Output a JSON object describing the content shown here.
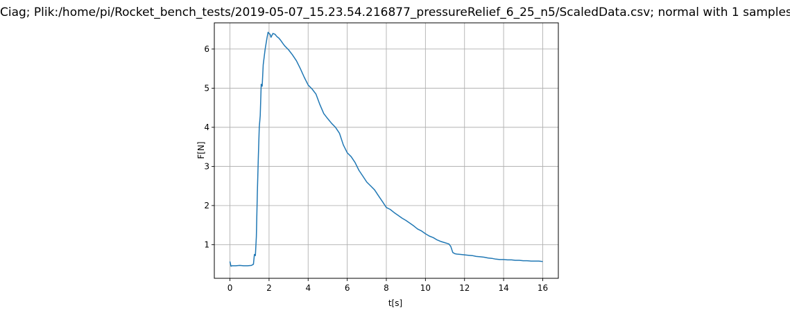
{
  "chart_data": {
    "type": "line",
    "title": "Ciag; Plik:/home/pi/Rocket_bench_tests/2019-05-07_15.23.54.216877_pressureRelief_6_25_n5/ScaledData.csv; normal with 1 samples",
    "xlabel": "t[s]",
    "ylabel": "F[N]",
    "xlim": [
      -0.8,
      16.8
    ],
    "ylim": [
      0.14,
      6.67
    ],
    "xticks": [
      0,
      2,
      4,
      6,
      8,
      10,
      12,
      14,
      16
    ],
    "yticks": [
      1,
      2,
      3,
      4,
      5,
      6
    ],
    "xtick_labels": [
      "0",
      "2",
      "4",
      "6",
      "8",
      "10",
      "12",
      "14",
      "16"
    ],
    "ytick_labels": [
      "1",
      "2",
      "3",
      "4",
      "5",
      "6"
    ],
    "grid": true,
    "line_color": "#1f77b4",
    "grid_color": "#b0b0b0",
    "series": [
      {
        "x": [
          0.0,
          0.05,
          0.1,
          0.3,
          0.5,
          0.7,
          0.9,
          1.1,
          1.2,
          1.25,
          1.3,
          1.35,
          1.4,
          1.45,
          1.5,
          1.55,
          1.6,
          1.65,
          1.7,
          1.75,
          1.8,
          1.85,
          1.9,
          1.95,
          2.0,
          2.05,
          2.1,
          2.15,
          2.2,
          2.3,
          2.4,
          2.5,
          2.6,
          2.7,
          2.8,
          3.0,
          3.2,
          3.4,
          3.6,
          3.8,
          4.0,
          4.2,
          4.4,
          4.6,
          4.8,
          5.0,
          5.2,
          5.4,
          5.6,
          5.8,
          6.0,
          6.2,
          6.4,
          6.6,
          6.8,
          7.0,
          7.2,
          7.4,
          7.6,
          7.8,
          8.0,
          8.2,
          8.4,
          8.6,
          8.8,
          9.0,
          9.2,
          9.4,
          9.6,
          9.8,
          10.0,
          10.2,
          10.4,
          10.6,
          10.8,
          11.0,
          11.2,
          11.3,
          11.4,
          11.5,
          11.6,
          11.8,
          12.0,
          12.2,
          12.4,
          12.6,
          12.8,
          13.0,
          13.2,
          13.4,
          13.6,
          13.8,
          14.0,
          14.2,
          14.4,
          14.6,
          14.8,
          15.0,
          15.2,
          15.4,
          15.6,
          15.8,
          16.0
        ],
        "values": [
          0.57,
          0.45,
          0.46,
          0.46,
          0.47,
          0.46,
          0.46,
          0.47,
          0.5,
          0.75,
          0.72,
          1.2,
          2.3,
          3.2,
          4.0,
          4.3,
          5.1,
          5.05,
          5.6,
          5.8,
          6.0,
          6.15,
          6.3,
          6.43,
          6.4,
          6.38,
          6.3,
          6.35,
          6.4,
          6.38,
          6.32,
          6.28,
          6.22,
          6.15,
          6.08,
          5.98,
          5.85,
          5.7,
          5.5,
          5.28,
          5.08,
          4.98,
          4.85,
          4.58,
          4.35,
          4.22,
          4.1,
          4.0,
          3.85,
          3.55,
          3.35,
          3.25,
          3.1,
          2.9,
          2.75,
          2.6,
          2.5,
          2.4,
          2.25,
          2.1,
          1.95,
          1.9,
          1.82,
          1.75,
          1.68,
          1.62,
          1.55,
          1.48,
          1.4,
          1.35,
          1.28,
          1.22,
          1.18,
          1.12,
          1.08,
          1.05,
          1.02,
          0.95,
          0.8,
          0.77,
          0.76,
          0.75,
          0.74,
          0.73,
          0.72,
          0.7,
          0.69,
          0.68,
          0.66,
          0.65,
          0.63,
          0.62,
          0.62,
          0.61,
          0.61,
          0.6,
          0.6,
          0.59,
          0.59,
          0.58,
          0.58,
          0.58,
          0.57
        ]
      }
    ]
  }
}
